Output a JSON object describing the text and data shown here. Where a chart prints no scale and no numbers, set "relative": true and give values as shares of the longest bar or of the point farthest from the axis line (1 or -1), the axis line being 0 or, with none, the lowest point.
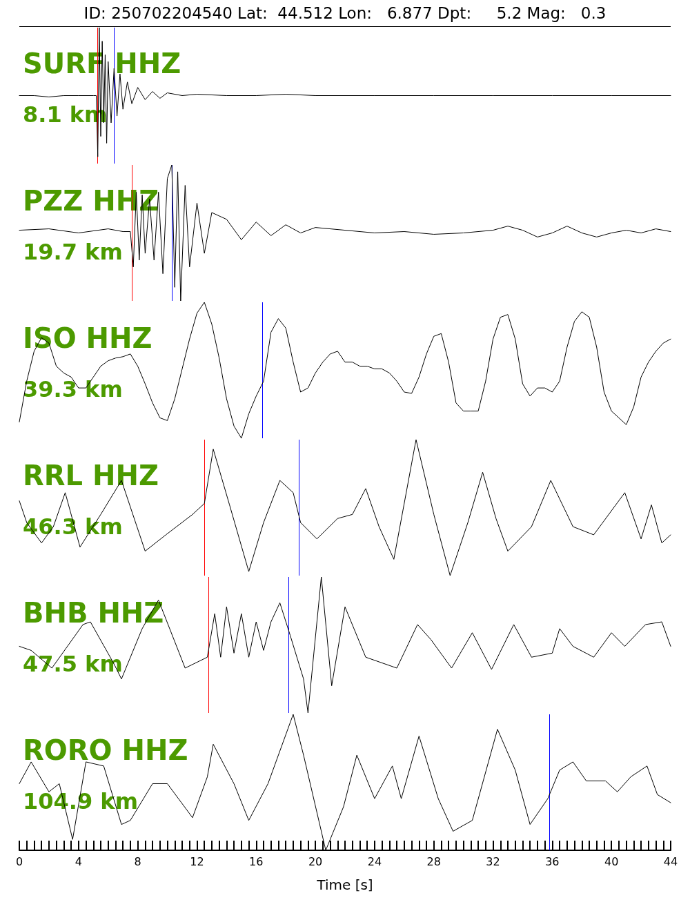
{
  "chart_data": [
    {
      "type": "line",
      "title": "SURF HHZ",
      "subtitle": "8.1 km",
      "annotations": [
        "ID: 250702204540 Lat:  44.512 Lon:   6.877 Dpt:     5.2 Mag:   0.3"
      ],
      "relative": true,
      "xlim": [
        0,
        44
      ],
      "tick_labels": false,
      "x": [
        0,
        1,
        2,
        3,
        4,
        5,
        5.2,
        5.3,
        5.4,
        5.5,
        5.6,
        5.7,
        5.8,
        5.9,
        6.0,
        6.2,
        6.4,
        6.6,
        6.8,
        7.0,
        7.3,
        7.6,
        8,
        8.5,
        9,
        9.5,
        10,
        11,
        12,
        14,
        16,
        18,
        20,
        24,
        28,
        32,
        36,
        40,
        44
      ],
      "series": [
        {
          "color": "#000000",
          "values": [
            0.5,
            0.5,
            0.49,
            0.5,
            0.5,
            0.5,
            0.5,
            0.05,
            1,
            0.2,
            0.9,
            0.3,
            0.8,
            0.15,
            0.75,
            0.3,
            0.7,
            0.35,
            0.66,
            0.4,
            0.6,
            0.44,
            0.56,
            0.47,
            0.53,
            0.48,
            0.52,
            0.5,
            0.51,
            0.5,
            0.5,
            0.51,
            0.5,
            0.5,
            0.5,
            0.5,
            0.5,
            0.5,
            0.5
          ]
        }
      ],
      "ref_lines": [
        {
          "axis": "x",
          "value": 5.3,
          "color": "#ff0000"
        },
        {
          "axis": "x",
          "value": 6.4,
          "color": "#0000ff"
        }
      ]
    },
    {
      "type": "line",
      "title": "PZZ HHZ",
      "subtitle": "19.7 km",
      "relative": true,
      "xlim": [
        0,
        44
      ],
      "tick_labels": false,
      "x": [
        0,
        2,
        4,
        6,
        7,
        7.5,
        7.7,
        7.9,
        8.1,
        8.3,
        8.5,
        8.8,
        9.1,
        9.4,
        9.7,
        10,
        10.3,
        10.5,
        10.7,
        10.9,
        11.2,
        11.5,
        12,
        12.5,
        13,
        14,
        15,
        16,
        17,
        18,
        19,
        20,
        22,
        24,
        26,
        28,
        30,
        32,
        33,
        34,
        35,
        36,
        37,
        38,
        39,
        40,
        41,
        42,
        43,
        44
      ],
      "series": [
        {
          "color": "#000000",
          "values": [
            0.52,
            0.53,
            0.5,
            0.53,
            0.51,
            0.51,
            0.25,
            0.8,
            0.3,
            0.78,
            0.35,
            0.75,
            0.3,
            0.8,
            0.2,
            0.9,
            1,
            0.1,
            0.95,
            0,
            0.85,
            0.25,
            0.72,
            0.35,
            0.65,
            0.6,
            0.45,
            0.58,
            0.48,
            0.56,
            0.5,
            0.54,
            0.52,
            0.5,
            0.51,
            0.49,
            0.5,
            0.52,
            0.55,
            0.52,
            0.47,
            0.5,
            0.55,
            0.5,
            0.47,
            0.5,
            0.52,
            0.5,
            0.53,
            0.51
          ]
        }
      ],
      "ref_lines": [
        {
          "axis": "x",
          "value": 7.6,
          "color": "#ff0000"
        },
        {
          "axis": "x",
          "value": 10.3,
          "color": "#0000ff"
        }
      ]
    },
    {
      "type": "line",
      "title": "ISO HHZ",
      "subtitle": "39.3 km",
      "relative": true,
      "xlim": [
        0,
        44
      ],
      "tick_labels": false,
      "x": [
        0,
        0.5,
        1,
        1.5,
        2,
        2.5,
        3,
        3.5,
        4,
        4.5,
        5,
        5.5,
        6,
        6.5,
        7,
        7.5,
        8,
        8.5,
        9,
        9.5,
        10,
        10.5,
        11,
        11.5,
        12,
        12.5,
        13,
        13.5,
        14,
        14.5,
        15,
        15.5,
        16,
        16.5,
        17,
        17.5,
        18,
        18.5,
        19,
        19.5,
        20,
        20.5,
        21,
        21.5,
        22,
        22.5,
        23,
        23.5,
        24,
        24.5,
        25,
        25.5,
        26,
        26.5,
        27,
        27.5,
        28,
        28.5,
        29,
        29.5,
        30,
        30.5,
        31,
        31.5,
        32,
        32.5,
        33,
        33.5,
        34,
        34.5,
        35,
        35.5,
        36,
        36.5,
        37,
        37.5,
        38,
        38.5,
        39,
        39.5,
        40,
        40.5,
        41,
        41.5,
        42,
        42.5,
        43,
        43.5,
        44
      ],
      "series": [
        {
          "color": "#000000",
          "values": [
            0.12,
            0.42,
            0.64,
            0.74,
            0.7,
            0.53,
            0.48,
            0.45,
            0.37,
            0.37,
            0.45,
            0.53,
            0.57,
            0.59,
            0.6,
            0.62,
            0.53,
            0.4,
            0.26,
            0.15,
            0.13,
            0.29,
            0.51,
            0.73,
            0.92,
            1,
            0.84,
            0.59,
            0.29,
            0.09,
            0,
            0.18,
            0.31,
            0.42,
            0.78,
            0.88,
            0.81,
            0.56,
            0.34,
            0.37,
            0.48,
            0.56,
            0.62,
            0.64,
            0.56,
            0.56,
            0.53,
            0.53,
            0.51,
            0.51,
            0.48,
            0.42,
            0.34,
            0.33,
            0.45,
            0.62,
            0.75,
            0.77,
            0.56,
            0.26,
            0.2,
            0.2,
            0.2,
            0.42,
            0.73,
            0.89,
            0.91,
            0.73,
            0.4,
            0.31,
            0.37,
            0.37,
            0.34,
            0.42,
            0.67,
            0.86,
            0.93,
            0.89,
            0.67,
            0.34,
            0.2,
            0.15,
            0.1,
            0.23,
            0.45,
            0.56,
            0.64,
            0.7,
            0.73
          ]
        }
      ],
      "ref_lines": [
        {
          "axis": "x",
          "value": 16.4,
          "color": "#0000ff"
        }
      ]
    },
    {
      "type": "line",
      "title": "RRL HHZ",
      "subtitle": "46.3 km",
      "relative": true,
      "xlim": [
        0,
        44
      ],
      "tick_labels": false,
      "x": [
        0,
        0.5,
        1.5,
        2.3,
        3.1,
        4.1,
        5.5,
        6.9,
        8.5,
        9.9,
        11.7,
        12.5,
        13.1,
        14.2,
        15.5,
        16.5,
        17.6,
        18.5,
        19,
        20.1,
        21.5,
        22.5,
        23.4,
        24.3,
        25.3,
        26.8,
        28,
        29.1,
        30.3,
        31.3,
        32.2,
        33,
        34.6,
        35.9,
        37.4,
        38.8,
        40.9,
        42,
        42.7,
        43.4,
        44
      ],
      "series": [
        {
          "color": "#000000",
          "values": [
            0.55,
            0.39,
            0.24,
            0.36,
            0.61,
            0.21,
            0.45,
            0.7,
            0.18,
            0.3,
            0.45,
            0.53,
            0.93,
            0.52,
            0.03,
            0.39,
            0.7,
            0.61,
            0.39,
            0.27,
            0.42,
            0.45,
            0.64,
            0.36,
            0.12,
            1,
            0.45,
            0,
            0.39,
            0.76,
            0.42,
            0.18,
            0.36,
            0.7,
            0.36,
            0.3,
            0.61,
            0.27,
            0.52,
            0.24,
            0.3
          ]
        }
      ],
      "ref_lines": [
        {
          "axis": "x",
          "value": 12.5,
          "color": "#ff0000"
        },
        {
          "axis": "x",
          "value": 18.9,
          "color": "#0000ff"
        }
      ]
    },
    {
      "type": "line",
      "title": "BHB HHZ",
      "subtitle": "47.5 km",
      "relative": true,
      "xlim": [
        0,
        44
      ],
      "tick_labels": false,
      "x": [
        0,
        0.8,
        2.2,
        4.3,
        4.8,
        6.4,
        6.9,
        8.3,
        9.4,
        11.2,
        12.7,
        13.2,
        13.6,
        14,
        14.5,
        15,
        15.5,
        16,
        16.5,
        17,
        17.6,
        18.3,
        19.2,
        19.5,
        20.4,
        21.1,
        22,
        23.4,
        25.5,
        26.9,
        27.8,
        29.2,
        30.6,
        31.9,
        33.4,
        34.6,
        36,
        36.5,
        37.4,
        38.8,
        40,
        40.9,
        42.3,
        43.4,
        44
      ],
      "series": [
        {
          "color": "#000000",
          "values": [
            0.49,
            0.46,
            0.33,
            0.65,
            0.67,
            0.36,
            0.25,
            0.62,
            0.83,
            0.33,
            0.41,
            0.73,
            0.41,
            0.78,
            0.44,
            0.73,
            0.41,
            0.67,
            0.46,
            0.67,
            0.81,
            0.57,
            0.25,
            0,
            1,
            0.2,
            0.78,
            0.41,
            0.33,
            0.65,
            0.54,
            0.33,
            0.59,
            0.32,
            0.65,
            0.41,
            0.44,
            0.62,
            0.49,
            0.41,
            0.59,
            0.49,
            0.65,
            0.67,
            0.49
          ]
        }
      ],
      "ref_lines": [
        {
          "axis": "x",
          "value": 12.8,
          "color": "#ff0000"
        },
        {
          "axis": "x",
          "value": 18.2,
          "color": "#0000ff"
        }
      ]
    },
    {
      "type": "line",
      "title": "RORO HHZ",
      "subtitle": "104.9 km",
      "relative": true,
      "xlim": [
        0,
        44
      ],
      "tick_labels": "x",
      "xlabel": "Time [s]",
      "x": [
        0,
        0.8,
        2,
        2.7,
        3.6,
        4.5,
        5.7,
        6.9,
        7.5,
        9,
        10,
        11.7,
        12.7,
        13.1,
        14.5,
        15.5,
        16.8,
        18.5,
        19.2,
        20.7,
        21.9,
        22.8,
        24,
        25.2,
        25.8,
        27,
        28.3,
        29.3,
        30.6,
        32.3,
        33.5,
        34.5,
        35.7,
        36.5,
        37.4,
        38.3,
        39.6,
        40.4,
        41.3,
        42.4,
        43.1,
        44
      ],
      "series": [
        {
          "color": "#000000",
          "values": [
            0.49,
            0.65,
            0.43,
            0.49,
            0.08,
            0.65,
            0.62,
            0.19,
            0.22,
            0.49,
            0.49,
            0.24,
            0.54,
            0.78,
            0.49,
            0.22,
            0.49,
            1,
            0.7,
            0,
            0.32,
            0.7,
            0.38,
            0.62,
            0.38,
            0.84,
            0.38,
            0.14,
            0.22,
            0.89,
            0.59,
            0.19,
            0.38,
            0.59,
            0.65,
            0.51,
            0.51,
            0.43,
            0.54,
            0.62,
            0.41,
            0.35
          ]
        }
      ],
      "ref_lines": [
        {
          "axis": "x",
          "value": 35.8,
          "color": "#0000ff"
        }
      ],
      "xticks": [
        0,
        {
          "value": 0.5,
          "label": null
        },
        {
          "value": 1,
          "label": null
        },
        {
          "value": 1.5,
          "label": null
        },
        {
          "value": 2,
          "label": null
        },
        {
          "value": 2.5,
          "label": null
        },
        {
          "value": 3,
          "label": null
        },
        {
          "value": 3.5,
          "label": null
        },
        4,
        {
          "value": 4.5,
          "label": null
        },
        {
          "value": 5,
          "label": null
        },
        {
          "value": 5.5,
          "label": null
        },
        {
          "value": 6,
          "label": null
        },
        {
          "value": 6.5,
          "label": null
        },
        {
          "value": 7,
          "label": null
        },
        {
          "value": 7.5,
          "label": null
        },
        8,
        {
          "value": 8.5,
          "label": null
        },
        {
          "value": 9,
          "label": null
        },
        {
          "value": 9.5,
          "label": null
        },
        {
          "value": 10,
          "label": null
        },
        {
          "value": 10.5,
          "label": null
        },
        {
          "value": 11,
          "label": null
        },
        {
          "value": 11.5,
          "label": null
        },
        12,
        {
          "value": 12.5,
          "label": null
        },
        {
          "value": 13,
          "label": null
        },
        {
          "value": 13.5,
          "label": null
        },
        {
          "value": 14,
          "label": null
        },
        {
          "value": 14.5,
          "label": null
        },
        {
          "value": 15,
          "label": null
        },
        {
          "value": 15.5,
          "label": null
        },
        16,
        {
          "value": 16.5,
          "label": null
        },
        {
          "value": 17,
          "label": null
        },
        {
          "value": 17.5,
          "label": null
        },
        {
          "value": 18,
          "label": null
        },
        {
          "value": 18.5,
          "label": null
        },
        {
          "value": 19,
          "label": null
        },
        {
          "value": 19.5,
          "label": null
        },
        20,
        {
          "value": 20.5,
          "label": null
        },
        {
          "value": 21,
          "label": null
        },
        {
          "value": 21.5,
          "label": null
        },
        {
          "value": 22,
          "label": null
        },
        {
          "value": 22.5,
          "label": null
        },
        {
          "value": 23,
          "label": null
        },
        {
          "value": 23.5,
          "label": null
        },
        24,
        {
          "value": 24.5,
          "label": null
        },
        {
          "value": 25,
          "label": null
        },
        {
          "value": 25.5,
          "label": null
        },
        {
          "value": 26,
          "label": null
        },
        {
          "value": 26.5,
          "label": null
        },
        {
          "value": 27,
          "label": null
        },
        {
          "value": 27.5,
          "label": null
        },
        28,
        {
          "value": 28.5,
          "label": null
        },
        {
          "value": 29,
          "label": null
        },
        {
          "value": 29.5,
          "label": null
        },
        {
          "value": 30,
          "label": null
        },
        {
          "value": 30.5,
          "label": null
        },
        {
          "value": 31,
          "label": null
        },
        {
          "value": 31.5,
          "label": null
        },
        32,
        {
          "value": 32.5,
          "label": null
        },
        {
          "value": 33,
          "label": null
        },
        {
          "value": 33.5,
          "label": null
        },
        {
          "value": 34,
          "label": null
        },
        {
          "value": 34.5,
          "label": null
        },
        {
          "value": 35,
          "label": null
        },
        {
          "value": 35.5,
          "label": null
        },
        36,
        {
          "value": 36.5,
          "label": null
        },
        {
          "value": 37,
          "label": null
        },
        {
          "value": 37.5,
          "label": null
        },
        {
          "value": 38,
          "label": null
        },
        {
          "value": 38.5,
          "label": null
        },
        {
          "value": 39,
          "label": null
        },
        {
          "value": 39.5,
          "label": null
        },
        40,
        {
          "value": 40.5,
          "label": null
        },
        {
          "value": 41,
          "label": null
        },
        {
          "value": 41.5,
          "label": null
        },
        {
          "value": 42,
          "label": null
        },
        {
          "value": 42.5,
          "label": null
        },
        {
          "value": 43,
          "label": null
        },
        {
          "value": 43.5,
          "label": null
        },
        44
      ]
    }
  ]
}
